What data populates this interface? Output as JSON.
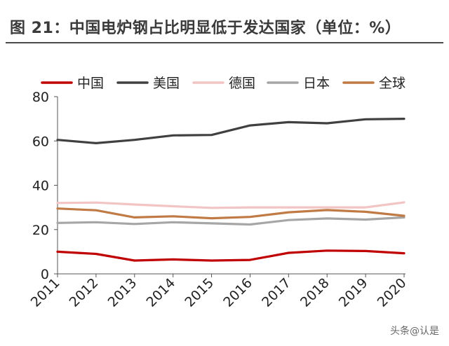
{
  "title": "图 21：中国电炉钢占比明显低于发达国家（单位：%）",
  "watermark": "头条@认是",
  "chart_data": {
    "type": "line",
    "title": "图 21：中国电炉钢占比明显低于发达国家（单位：%）",
    "xlabel": "",
    "ylabel": "",
    "x": [
      "2011",
      "2012",
      "2013",
      "2014",
      "2015",
      "2016",
      "2017",
      "2018",
      "2019",
      "2020"
    ],
    "ylim": [
      0,
      80
    ],
    "yticks": [
      0,
      20,
      40,
      60,
      80
    ],
    "grid": false,
    "legend": "top",
    "series": [
      {
        "name": "中国",
        "color": "#c00000",
        "values": [
          10,
          9,
          6,
          6.5,
          6,
          6.3,
          9.5,
          10.5,
          10.3,
          9.3
        ]
      },
      {
        "name": "美国",
        "color": "#404040",
        "values": [
          60.5,
          59,
          60.5,
          62.5,
          62.7,
          67,
          68.5,
          68,
          69.8,
          70
        ]
      },
      {
        "name": "德国",
        "color": "#f2c4c4",
        "values": [
          32,
          32.2,
          31.3,
          30.5,
          29.8,
          30,
          30,
          30,
          30,
          32.3
        ]
      },
      {
        "name": "日本",
        "color": "#a6a6a6",
        "values": [
          23,
          23.3,
          22.5,
          23.3,
          22.8,
          22.3,
          24.3,
          25,
          24.5,
          25.5
        ]
      },
      {
        "name": "全球",
        "color": "#c07a45",
        "values": [
          29.5,
          28.7,
          25.5,
          26,
          25.1,
          25.7,
          27.8,
          28.8,
          28,
          26.2
        ]
      }
    ]
  }
}
